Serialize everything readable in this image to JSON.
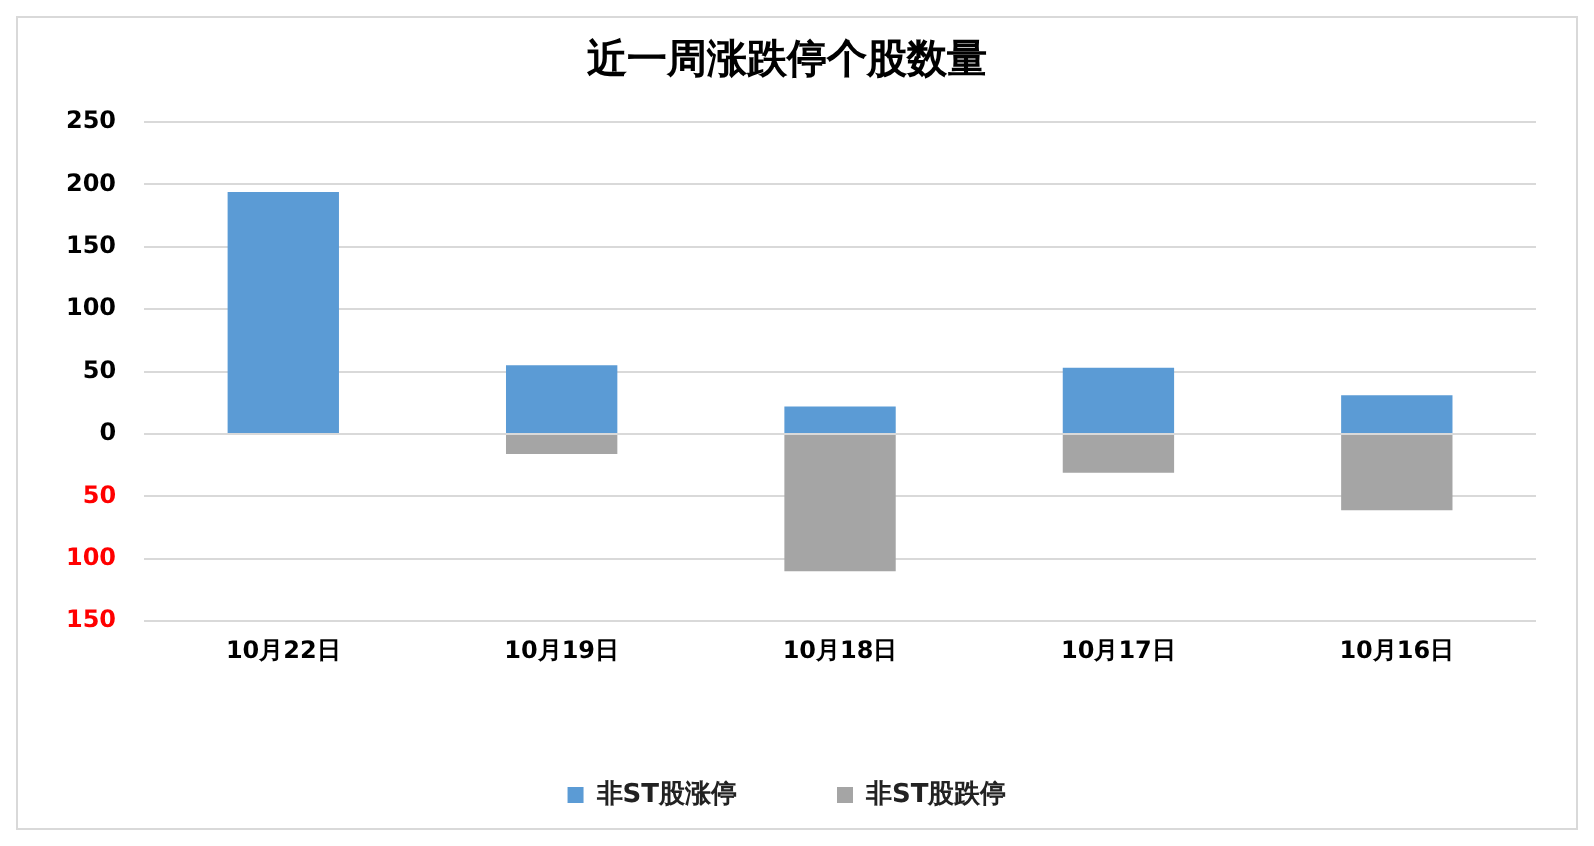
{
  "chart_data": {
    "type": "bar",
    "title": "近一周涨跌停个股数量",
    "categories": [
      "10月22日",
      "10月19日",
      "10月18日",
      "10月17日",
      "10月16日"
    ],
    "series": [
      {
        "name": "非ST股涨停",
        "color": "#5b9bd5",
        "values": [
          194,
          55,
          22,
          53,
          31
        ]
      },
      {
        "name": "非ST股跌停",
        "color": "#a5a5a5",
        "values": [
          0,
          -16,
          -110,
          -31,
          -61
        ]
      }
    ],
    "stacked": true,
    "ylim": [
      -150,
      250
    ],
    "yticks": [
      250,
      200,
      150,
      100,
      50,
      0,
      {
        "value": -50,
        "label": "50"
      },
      {
        "value": -100,
        "label": "100"
      },
      {
        "value": -150,
        "label": "150"
      }
    ],
    "grid": "y",
    "legend": "bottom"
  }
}
